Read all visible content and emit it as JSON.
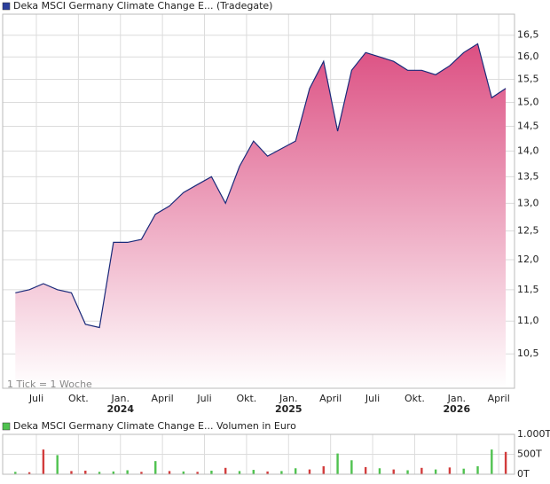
{
  "chart_data": [
    {
      "type": "area",
      "title": "Deka MSCI Germany Climate Change E... (Tradegate)",
      "legend_color": "#2a3f9c",
      "annotation": "1 Tick = 1 Woche",
      "log_scale": true,
      "grid": true,
      "color": "#1a2a7a",
      "fill_color": "#dc4f82",
      "x": [
        "2023-05",
        "2023-06",
        "2023-07",
        "2023-08",
        "2023-09",
        "2023-10",
        "2023-11",
        "2023-12",
        "2024-01",
        "2024-02",
        "2024-03",
        "2024-04",
        "2024-05",
        "2024-06",
        "2024-07",
        "2024-08",
        "2024-09",
        "2024-10",
        "2024-11",
        "2024-12",
        "2025-01",
        "2025-02",
        "2025-03",
        "2025-04",
        "2025-05",
        "2025-06",
        "2025-07",
        "2025-08",
        "2025-09",
        "2025-10",
        "2025-11",
        "2025-12",
        "2026-01",
        "2026-02",
        "2026-03",
        "2026-04"
      ],
      "values": [
        11.45,
        11.5,
        11.6,
        11.5,
        11.45,
        10.95,
        10.9,
        12.3,
        12.3,
        12.35,
        12.8,
        12.95,
        13.2,
        13.35,
        13.5,
        13.0,
        13.7,
        14.2,
        13.9,
        14.05,
        14.2,
        15.3,
        15.9,
        14.4,
        15.7,
        16.1,
        16.0,
        15.9,
        15.7,
        15.7,
        15.6,
        15.8,
        16.1,
        16.3,
        15.1,
        15.3
      ],
      "xlim": [
        "2023-05",
        "2026-05"
      ],
      "xticks": [
        {
          "value": "2023-07",
          "label": "Juli"
        },
        {
          "value": "2023-10",
          "label": "Okt."
        },
        {
          "value": "2024-01",
          "label": "Jan.",
          "sublabel": "2024"
        },
        {
          "value": "2024-04",
          "label": "April"
        },
        {
          "value": "2024-07",
          "label": "Juli"
        },
        {
          "value": "2024-10",
          "label": "Okt."
        },
        {
          "value": "2025-01",
          "label": "Jan.",
          "sublabel": "2025"
        },
        {
          "value": "2025-04",
          "label": "April"
        },
        {
          "value": "2025-07",
          "label": "Juli"
        },
        {
          "value": "2025-10",
          "label": "Okt."
        },
        {
          "value": "2026-01",
          "label": "Jan.",
          "sublabel": "2026"
        },
        {
          "value": "2026-04",
          "label": "April"
        }
      ],
      "ylim": [
        10,
        17
      ],
      "yticks": [
        {
          "value": 10.5,
          "label": "10,5"
        },
        {
          "value": 11,
          "label": "11,0"
        },
        {
          "value": 11.5,
          "label": "11,5"
        },
        {
          "value": 12,
          "label": "12,0"
        },
        {
          "value": 12.5,
          "label": "12,5"
        },
        {
          "value": 13,
          "label": "13,0"
        },
        {
          "value": 13.5,
          "label": "13,5"
        },
        {
          "value": 14,
          "label": "14,0"
        },
        {
          "value": 14.5,
          "label": "14,5"
        },
        {
          "value": 15,
          "label": "15,0"
        },
        {
          "value": 15.5,
          "label": "15,5"
        },
        {
          "value": 16,
          "label": "16,0"
        },
        {
          "value": 16.5,
          "label": "16,5"
        }
      ]
    },
    {
      "type": "bar",
      "title": "Deka MSCI Germany Climate Change E... Volumen in Euro",
      "legend_color": "#4fc24f",
      "grid": true,
      "x": [
        "2023-05",
        "2023-06",
        "2023-07",
        "2023-08",
        "2023-09",
        "2023-10",
        "2023-11",
        "2023-12",
        "2024-01",
        "2024-02",
        "2024-03",
        "2024-04",
        "2024-05",
        "2024-06",
        "2024-07",
        "2024-08",
        "2024-09",
        "2024-10",
        "2024-11",
        "2024-12",
        "2025-01",
        "2025-02",
        "2025-03",
        "2025-04",
        "2025-05",
        "2025-06",
        "2025-07",
        "2025-08",
        "2025-09",
        "2025-10",
        "2025-11",
        "2025-12",
        "2026-01",
        "2026-02",
        "2026-03",
        "2026-04"
      ],
      "values": [
        60,
        50,
        620,
        480,
        80,
        90,
        60,
        70,
        100,
        60,
        330,
        80,
        70,
        60,
        90,
        160,
        80,
        110,
        70,
        80,
        150,
        120,
        200,
        520,
        350,
        180,
        150,
        120,
        100,
        160,
        120,
        170,
        140,
        200,
        620,
        560
      ],
      "colors": [
        "#4fc24f",
        "#d23c3c",
        "#d23c3c",
        "#4fc24f",
        "#d23c3c",
        "#d23c3c",
        "#4fc24f",
        "#4fc24f",
        "#4fc24f",
        "#d23c3c",
        "#4fc24f",
        "#d23c3c",
        "#4fc24f",
        "#d23c3c",
        "#4fc24f",
        "#d23c3c",
        "#4fc24f",
        "#4fc24f",
        "#d23c3c",
        "#4fc24f",
        "#4fc24f",
        "#d23c3c",
        "#d23c3c",
        "#4fc24f",
        "#4fc24f",
        "#d23c3c",
        "#4fc24f",
        "#d23c3c",
        "#4fc24f",
        "#d23c3c",
        "#4fc24f",
        "#d23c3c",
        "#4fc24f",
        "#4fc24f",
        "#4fc24f",
        "#d23c3c"
      ],
      "xlim": [
        "2023-05",
        "2026-05"
      ],
      "ylim": [
        0,
        1000
      ],
      "yticks": [
        {
          "value": 0,
          "label": "0T"
        },
        {
          "value": 500,
          "label": "500T"
        },
        {
          "value": 1000,
          "label": "1.000T"
        }
      ]
    }
  ]
}
